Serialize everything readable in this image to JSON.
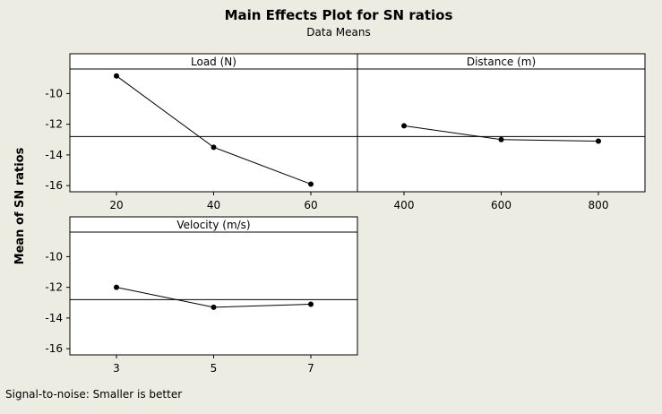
{
  "chart_data": {
    "type": "line",
    "title": "Main Effects Plot for SN ratios",
    "subtitle": "Data Means",
    "ylabel": "Mean of SN ratios",
    "footnote": "Signal-to-noise: Smaller is better",
    "ylim": [
      -16.4,
      -8.4
    ],
    "yticks": [
      -10,
      -12,
      -14,
      -16
    ],
    "yticklabels": [
      "-10",
      "-12",
      "-14",
      "-16"
    ],
    "reference_mean": -12.8,
    "grid": false,
    "panels": [
      {
        "name": "Load (N)",
        "categories": [
          "20",
          "40",
          "60"
        ],
        "values": [
          -8.85,
          -13.5,
          -15.9
        ]
      },
      {
        "name": "Distance (m)",
        "categories": [
          "400",
          "600",
          "800"
        ],
        "values": [
          -12.1,
          -13.0,
          -13.1
        ]
      },
      {
        "name": "Velocity (m/s)",
        "categories": [
          "3",
          "5",
          "7"
        ],
        "values": [
          -12.0,
          -13.3,
          -13.1
        ]
      }
    ]
  }
}
